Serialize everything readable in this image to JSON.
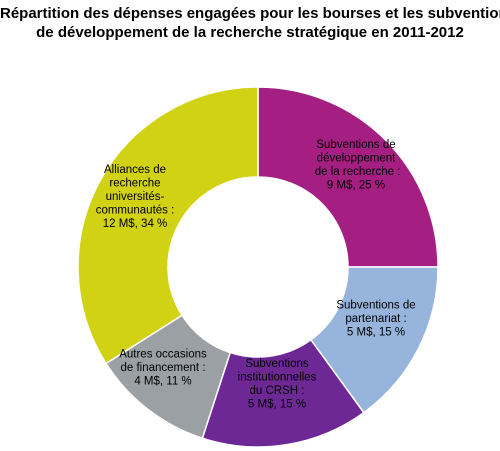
{
  "chart_data": {
    "type": "pie",
    "variant": "donut",
    "title_lines": [
      "Répartition des dépenses engagées pour les bourses et les subventions",
      "de développement de la recherche stratégique en 2011-2012"
    ],
    "legend": "none",
    "slices": [
      {
        "name": "Subventions de développement de la recherche",
        "value_musd": 9,
        "percent": 25,
        "color": "#a51e82",
        "label_lines": [
          "Subventions de",
          "développement",
          " de la recherche :",
          "9 M$, 25 %"
        ]
      },
      {
        "name": "Subventions de partenariat",
        "value_musd": 5,
        "percent": 15,
        "color": "#96b4dc",
        "label_lines": [
          "Subventions de",
          "partenariat :",
          "5 M$, 15 %"
        ]
      },
      {
        "name": "Subventions institutionnelles du CRSH",
        "value_musd": 5,
        "percent": 15,
        "color": "#6e2896",
        "label_lines": [
          "Subventions",
          "institutionnelles",
          "du CRSH :",
          "5 M$, 15 %"
        ]
      },
      {
        "name": "Autres occasions de financement",
        "value_musd": 4,
        "percent": 11,
        "color": "#9ba0a5",
        "label_lines": [
          "Autres occasions",
          "de financement :",
          "4 M$, 11 %"
        ]
      },
      {
        "name": "Alliances de recherche universités-communautés",
        "value_musd": 12,
        "percent": 34,
        "color": "#d2d214",
        "label_lines": [
          "Alliances de",
          "recherche",
          "universités-",
          "communautés :",
          "12 M$, 34 %"
        ]
      }
    ]
  }
}
